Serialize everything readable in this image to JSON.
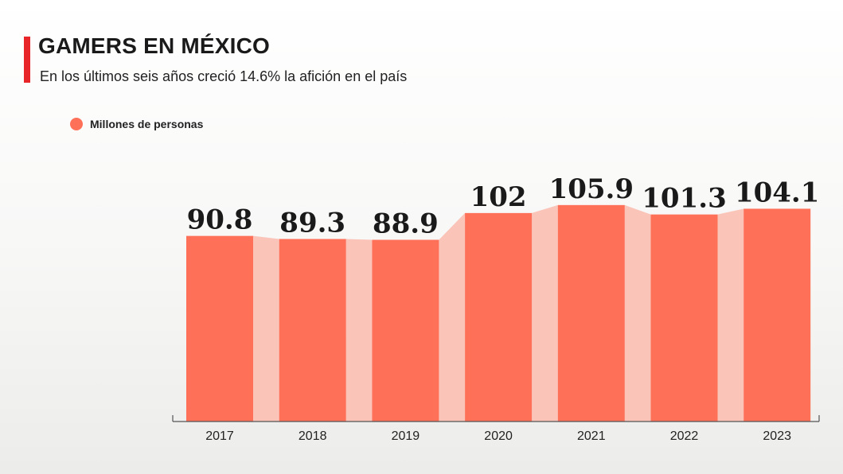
{
  "header": {
    "title": "GAMERS EN MÉXICO",
    "subtitle": "En los últimos seis años creció 14.6% la afición en el país"
  },
  "colors": {
    "accent": "#e8262a",
    "bar": "#ff7059",
    "connector": "#fac4b9"
  },
  "chart_data": {
    "type": "bar",
    "categories": [
      "2017",
      "2018",
      "2019",
      "2020",
      "2021",
      "2022",
      "2023"
    ],
    "series": [
      {
        "name": "Millones de personas",
        "values": [
          90.8,
          89.3,
          88.9,
          102,
          105.9,
          101.3,
          104.1
        ]
      }
    ],
    "data_labels": [
      "90.8",
      "89.3",
      "88.9",
      "102",
      "105.9",
      "101.3",
      "104.1"
    ],
    "ylim": [
      0,
      150
    ],
    "legend": "top-left",
    "grid": false
  }
}
